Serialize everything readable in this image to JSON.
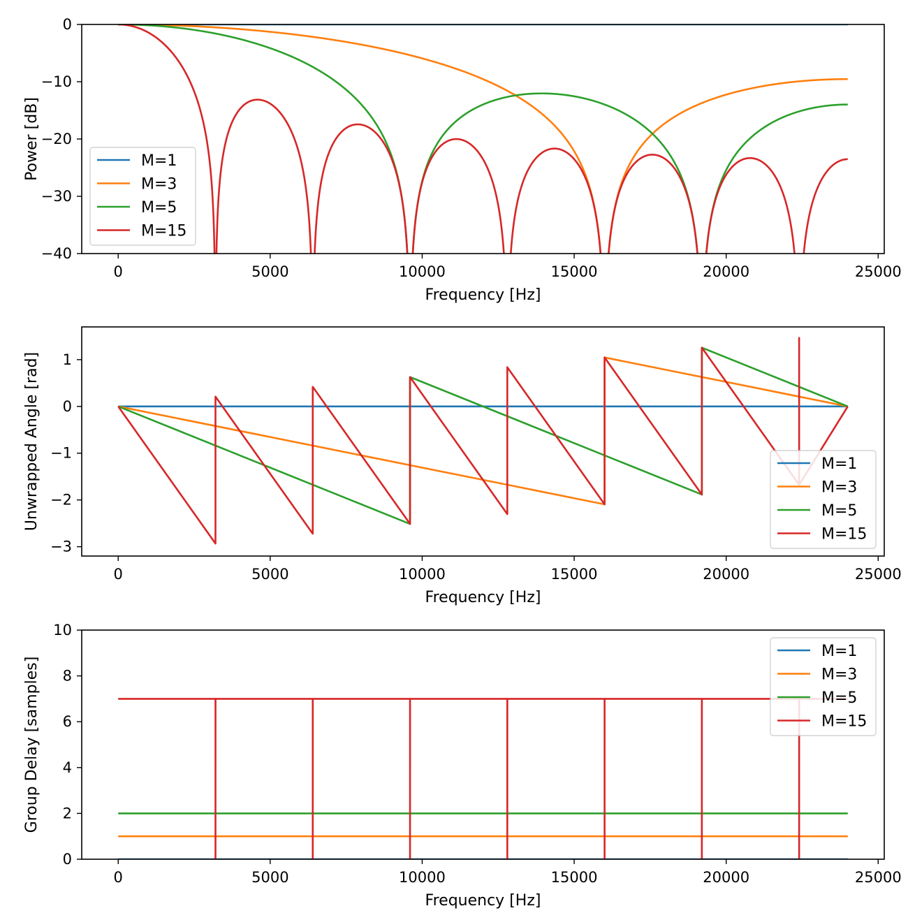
{
  "chart_data": [
    {
      "type": "line",
      "title": "",
      "xlabel": "Frequency [Hz]",
      "ylabel": "Power [dB]",
      "ylabel_color": "#0000ff",
      "xlim": [
        -1200,
        25200
      ],
      "ylim": [
        -40,
        0
      ],
      "xticks": [
        0,
        5000,
        10000,
        15000,
        20000,
        25000
      ],
      "yticks": [
        0,
        -10,
        -20,
        -30,
        -40
      ],
      "xtick_labels": [
        "0",
        "5000",
        "10000",
        "15000",
        "20000",
        "25000"
      ],
      "ytick_labels": [
        "0",
        "−10",
        "−20",
        "−30",
        "−40"
      ],
      "legend_loc": "lower-left",
      "grid": false,
      "fs": 48000,
      "x_range": [
        0,
        24000
      ],
      "series": [
        {
          "name": "M=1",
          "M": 1,
          "color": "#1f77b4"
        },
        {
          "name": "M=3",
          "M": 3,
          "color": "#ff7f0e"
        },
        {
          "name": "M=5",
          "M": 5,
          "color": "#2ca02c"
        },
        {
          "name": "M=15",
          "M": 15,
          "color": "#d62728"
        }
      ],
      "quantity": "power_db"
    },
    {
      "type": "line",
      "title": "",
      "xlabel": "Frequency [Hz]",
      "ylabel": "Unwrapped Angle [rad]",
      "ylabel_color": "#008000",
      "xlim": [
        -1200,
        25200
      ],
      "ylim": [
        -3.2,
        1.7
      ],
      "xticks": [
        0,
        5000,
        10000,
        15000,
        20000,
        25000
      ],
      "yticks": [
        1,
        0,
        -1,
        -2,
        -3
      ],
      "xtick_labels": [
        "0",
        "5000",
        "10000",
        "15000",
        "20000",
        "25000"
      ],
      "ytick_labels": [
        "1",
        "0",
        "−1",
        "−2",
        "−3"
      ],
      "legend_loc": "lower-right",
      "grid": false,
      "fs": 48000,
      "x_range": [
        0,
        24000
      ],
      "series": [
        {
          "name": "M=1",
          "M": 1,
          "color": "#1f77b4"
        },
        {
          "name": "M=3",
          "M": 3,
          "color": "#ff7f0e"
        },
        {
          "name": "M=5",
          "M": 5,
          "color": "#2ca02c"
        },
        {
          "name": "M=15",
          "M": 15,
          "color": "#d62728"
        }
      ],
      "quantity": "angle"
    },
    {
      "type": "line",
      "title": "",
      "xlabel": "Frequency [Hz]",
      "ylabel": "Group Delay [samples]",
      "ylabel_color": "#000000",
      "xlim": [
        -1200,
        25200
      ],
      "ylim": [
        0,
        10
      ],
      "xticks": [
        0,
        5000,
        10000,
        15000,
        20000,
        25000
      ],
      "yticks": [
        0,
        2,
        4,
        6,
        8,
        10
      ],
      "xtick_labels": [
        "0",
        "5000",
        "10000",
        "15000",
        "20000",
        "25000"
      ],
      "ytick_labels": [
        "0",
        "2",
        "4",
        "6",
        "8",
        "10"
      ],
      "legend_loc": "upper-right",
      "grid": false,
      "fs": 48000,
      "x_range": [
        0,
        24000
      ],
      "series": [
        {
          "name": "M=1",
          "M": 1,
          "color": "#1f77b4",
          "delay": 0
        },
        {
          "name": "M=3",
          "M": 3,
          "color": "#ff7f0e",
          "delay": 1
        },
        {
          "name": "M=5",
          "M": 5,
          "color": "#2ca02c",
          "delay": 2
        },
        {
          "name": "M=15",
          "M": 15,
          "color": "#d62728",
          "delay": 7,
          "zero_spikes_hz": [
            3200,
            6400,
            9600,
            12800,
            16000,
            19200,
            22400
          ]
        }
      ],
      "quantity": "group_delay"
    }
  ]
}
